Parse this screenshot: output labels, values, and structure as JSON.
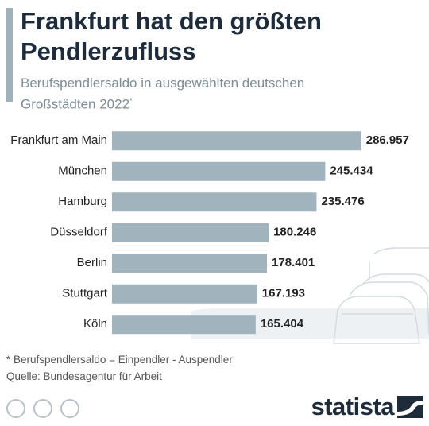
{
  "chart_data": {
    "type": "bar",
    "orientation": "horizontal",
    "title": "Frankfurt hat den größten Pendlerzufluss",
    "subtitle": "Berufspendlersaldo in ausgewählten deutschen Großstädten 2022",
    "subtitle_marker": "*",
    "categories": [
      "Frankfurt am Main",
      "München",
      "Hamburg",
      "Düsseldorf",
      "Berlin",
      "Stuttgart",
      "Köln"
    ],
    "values": [
      286957,
      245434,
      235476,
      180246,
      178401,
      167193,
      165404
    ],
    "value_labels": [
      "286.957",
      "245.434",
      "235.476",
      "180.246",
      "178.401",
      "167.193",
      "165.404"
    ],
    "color": "#a1b3bd",
    "xlim": [
      0,
      300000
    ],
    "footnote": "* Berufspendlersaldo = Einpendler - Auspendler",
    "source": "Quelle: Bundesagentur für Arbeit",
    "brand": "statista"
  }
}
